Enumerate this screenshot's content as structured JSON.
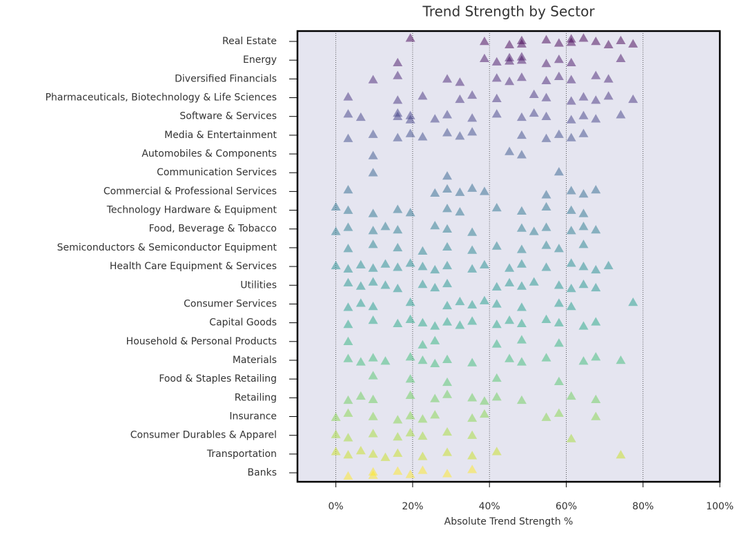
{
  "chart_data": {
    "type": "strip",
    "title": "Trend Strength by Sector",
    "xlabel": "Absolute Trend Strength %",
    "categories": [
      "Real Estate",
      "Energy",
      "Diversified Financials",
      "Pharmaceuticals, Biotechnology & Life Sciences",
      "Software & Services",
      "Media & Entertainment",
      "Automobiles & Components",
      "Communication Services",
      "Commercial & Professional Services",
      "Technology Hardware & Equipment",
      "Food, Beverage & Tobacco",
      "Semiconductors & Semiconductor Equipment",
      "Health Care Equipment & Services",
      "Utilities",
      "Consumer Services",
      "Capital Goods",
      "Household & Personal Products",
      "Materials",
      "Food & Staples Retailing",
      "Retailing",
      "Insurance",
      "Consumer Durables & Apparel",
      "Transportation",
      "Banks"
    ],
    "points": [
      [
        19.4,
        38.7,
        45.2,
        48.4,
        48.4,
        54.8,
        58.1,
        61.3,
        61.3,
        64.5,
        67.7,
        71,
        74.2,
        77.4
      ],
      [
        16.1,
        38.7,
        41.9,
        45.2,
        45.2,
        48.4,
        48.4,
        54.8,
        58.1,
        61.3,
        74.2
      ],
      [
        9.7,
        16.1,
        29,
        32.3,
        41.9,
        45.2,
        48.4,
        54.8,
        58.1,
        61.3,
        67.7,
        71
      ],
      [
        3.2,
        16.1,
        22.6,
        32.3,
        35.5,
        41.9,
        51.6,
        54.8,
        61.3,
        64.5,
        67.7,
        71,
        77.4
      ],
      [
        3.2,
        6.5,
        16.1,
        16.1,
        19.4,
        19.4,
        25.8,
        29,
        35.5,
        41.9,
        48.4,
        51.6,
        54.8,
        61.3,
        64.5,
        67.7,
        74.2
      ],
      [
        3.2,
        9.7,
        16.1,
        19.4,
        22.6,
        29,
        32.3,
        35.5,
        48.4,
        54.8,
        58.1,
        61.3,
        64.5
      ],
      [
        9.7,
        45.2,
        48.4
      ],
      [
        9.7,
        29,
        58.1
      ],
      [
        3.2,
        25.8,
        29,
        32.3,
        35.5,
        38.7,
        54.8,
        61.3,
        64.5,
        67.7
      ],
      [
        0,
        3.2,
        9.7,
        16.1,
        19.4,
        29,
        32.3,
        41.9,
        48.4,
        54.8,
        61.3,
        64.5
      ],
      [
        0,
        3.2,
        9.7,
        12.9,
        16.1,
        25.8,
        29,
        35.5,
        48.4,
        51.6,
        54.8,
        61.3,
        64.5,
        67.7
      ],
      [
        3.2,
        9.7,
        16.1,
        22.6,
        29,
        35.5,
        41.9,
        48.4,
        54.8,
        58.1,
        64.5
      ],
      [
        0,
        3.2,
        6.5,
        9.7,
        12.9,
        16.1,
        19.4,
        22.6,
        25.8,
        29,
        35.5,
        38.7,
        45.2,
        48.4,
        54.8,
        61.3,
        64.5,
        67.7,
        71
      ],
      [
        3.2,
        6.5,
        9.7,
        12.9,
        16.1,
        22.6,
        25.8,
        29,
        41.9,
        45.2,
        48.4,
        51.6,
        58.1,
        61.3,
        64.5,
        67.7
      ],
      [
        3.2,
        6.5,
        9.7,
        19.4,
        29,
        32.3,
        35.5,
        38.7,
        41.9,
        48.4,
        58.1,
        61.3,
        77.4
      ],
      [
        3.2,
        9.7,
        16.1,
        19.4,
        22.6,
        25.8,
        29,
        32.3,
        35.5,
        41.9,
        45.2,
        48.4,
        54.8,
        58.1,
        64.5,
        67.7
      ],
      [
        3.2,
        22.6,
        25.8,
        41.9,
        48.4,
        58.1
      ],
      [
        3.2,
        6.5,
        9.7,
        12.9,
        19.4,
        22.6,
        25.8,
        29,
        35.5,
        45.2,
        48.4,
        54.8,
        64.5,
        67.7,
        74.2
      ],
      [
        9.7,
        19.4,
        29,
        41.9,
        58.1
      ],
      [
        3.2,
        6.5,
        9.7,
        19.4,
        25.8,
        29,
        35.5,
        38.7,
        41.9,
        48.4,
        61.3,
        67.7
      ],
      [
        0,
        3.2,
        9.7,
        16.1,
        19.4,
        22.6,
        25.8,
        35.5,
        38.7,
        54.8,
        58.1,
        67.7
      ],
      [
        0,
        3.2,
        9.7,
        16.1,
        19.4,
        22.6,
        29,
        35.5,
        61.3
      ],
      [
        0,
        3.2,
        6.5,
        9.7,
        12.9,
        16.1,
        22.6,
        29,
        35.5,
        41.9,
        74.2
      ],
      [
        3.2,
        9.7,
        9.7,
        16.1,
        19.4,
        22.6,
        29,
        35.5
      ]
    ],
    "colors": [
      "#440154",
      "#471365",
      "#482374",
      "#46327e",
      "#424086",
      "#3e4c8a",
      "#39568c",
      "#34618d",
      "#306a8e",
      "#2c738e",
      "#297b8e",
      "#25848e",
      "#228d8d",
      "#1f958b",
      "#1f9e89",
      "#24a884",
      "#2fb47c",
      "#3bbb75",
      "#52c569",
      "#6ccd5a",
      "#86d549",
      "#a5db36",
      "#c8e020",
      "#fde725"
    ],
    "xlim": [
      -10,
      100
    ],
    "xticks": [
      {
        "value": 0,
        "label": "0%"
      },
      {
        "value": 20,
        "label": "20%"
      },
      {
        "value": 40,
        "label": "40%"
      },
      {
        "value": 60,
        "label": "60%"
      },
      {
        "value": 80,
        "label": "80%"
      },
      {
        "value": 100,
        "label": "100%"
      }
    ],
    "grid": true
  }
}
